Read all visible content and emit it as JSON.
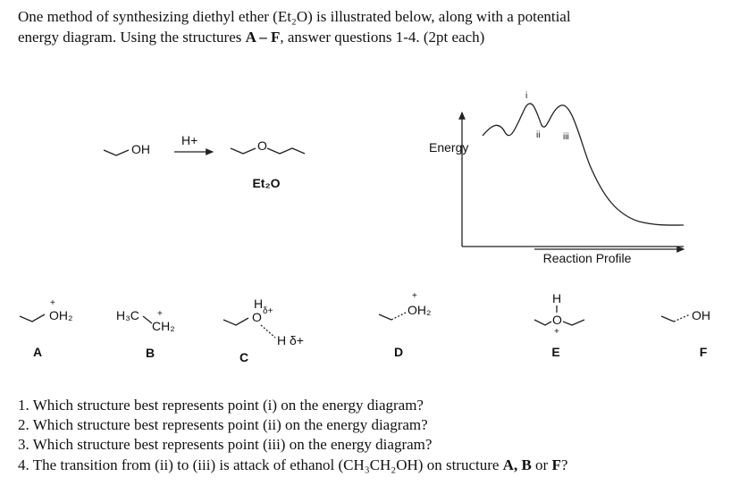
{
  "intro": {
    "line1": "One method of synthesizing diethyl ether (Et₂O) is illustrated below, along with a potential",
    "line2": [
      "energy diagram. Using the structures ",
      "A – F",
      ", answer questions 1-4. (2pt each)"
    ]
  },
  "reaction": {
    "reactant": "OH",
    "reagent": "H+",
    "product_o": "O",
    "product_name": "Et₂O"
  },
  "energy_diagram": {
    "y_label": "Energy",
    "x_label": "Reaction Profile",
    "points": [
      "i",
      "ii",
      "iii"
    ]
  },
  "structures": [
    {
      "letter": "A",
      "labels": [
        "+",
        "OH₂"
      ]
    },
    {
      "letter": "B",
      "labels": [
        "H₃C",
        "+",
        "CH₂"
      ]
    },
    {
      "letter": "C",
      "labels": [
        "H",
        "δ+",
        "O",
        "H δ+"
      ]
    },
    {
      "letter": "D",
      "labels": [
        "+",
        "OH₂"
      ]
    },
    {
      "letter": "E",
      "labels": [
        "H",
        "O",
        "+"
      ]
    },
    {
      "letter": "F",
      "labels": [
        "OH"
      ]
    }
  ],
  "questions": [
    "1. Which structure best represents point (i) on the energy diagram?",
    "2. Which structure best represents point (ii) on the energy diagram?",
    "3. Which structure best represents point (iii) on the energy diagram?",
    [
      "4. The transition from (ii) to (iii) is attack of ethanol (CH₃CH₂OH) on structure ",
      "A, B",
      " or ",
      "F",
      "?"
    ]
  ]
}
